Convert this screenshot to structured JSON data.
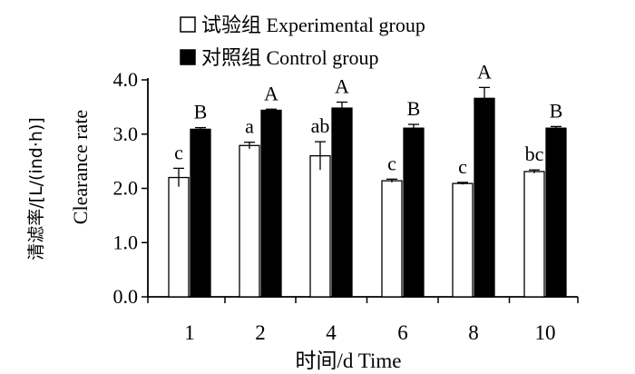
{
  "chart_data": {
    "type": "bar",
    "categories": [
      "1",
      "2",
      "4",
      "6",
      "8",
      "10"
    ],
    "xlabel": "时间/d Time",
    "ylabel_cn": "清滤率/[L/(ind·h)]",
    "ylabel_en": "Clearance rate",
    "ylim": [
      0,
      4
    ],
    "yticks": [
      "0.0",
      "1.0",
      "2.0",
      "3.0",
      "4.0"
    ],
    "grid": false,
    "legend_position": "top-center",
    "series": [
      {
        "name": "试验组 Experimental group",
        "color": "#ffffff",
        "values": [
          2.2,
          2.79,
          2.6,
          2.14,
          2.09,
          2.31
        ],
        "errors": [
          0.17,
          0.06,
          0.26,
          0.03,
          0.02,
          0.03
        ],
        "letters": [
          "c",
          "a",
          "ab",
          "c",
          "c",
          "bc"
        ]
      },
      {
        "name": "对照组 Control group",
        "color": "#000000",
        "values": [
          3.09,
          3.44,
          3.48,
          3.11,
          3.66,
          3.11
        ],
        "errors": [
          0.03,
          0.02,
          0.11,
          0.07,
          0.2,
          0.03
        ],
        "letters": [
          "B",
          "A",
          "A",
          "B",
          "A",
          "B"
        ]
      }
    ]
  }
}
